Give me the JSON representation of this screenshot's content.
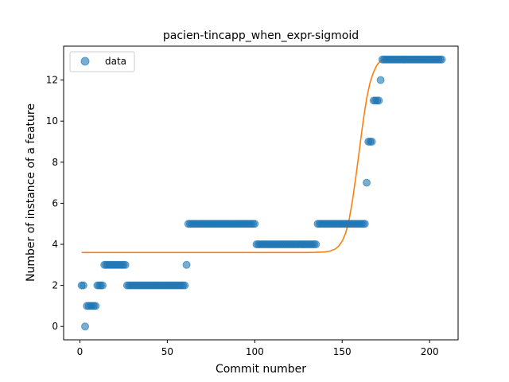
{
  "chart_data": {
    "type": "scatter",
    "title": "pacien-tincapp_when_expr-sigmoid",
    "xlabel": "Commit number",
    "ylabel": "Number of instance of a feature",
    "xlim": [
      -9.3,
      216.3
    ],
    "ylim": [
      -0.65,
      13.65
    ],
    "xticks": [
      0,
      50,
      100,
      150,
      200
    ],
    "yticks": [
      0,
      2,
      4,
      6,
      8,
      10,
      12
    ],
    "grid": false,
    "legend": {
      "position": "top-left",
      "entries": [
        {
          "label": "data",
          "marker": "circle",
          "color": "#1f77b4"
        }
      ]
    },
    "series": [
      {
        "name": "data",
        "kind": "scatter",
        "color": "#1f77b4",
        "opacity": 0.6,
        "points": [
          [
            1,
            2
          ],
          [
            2,
            2
          ],
          [
            3,
            0
          ],
          [
            4,
            1
          ],
          [
            5,
            1
          ],
          [
            6,
            1
          ],
          [
            7,
            1
          ],
          [
            8,
            1
          ],
          [
            9,
            1
          ],
          [
            10,
            2
          ],
          [
            11,
            2
          ],
          [
            12,
            2
          ],
          [
            13,
            2
          ],
          [
            14,
            3
          ],
          [
            15,
            3
          ],
          [
            16,
            3
          ],
          [
            17,
            3
          ],
          [
            18,
            3
          ],
          [
            19,
            3
          ],
          [
            20,
            3
          ],
          [
            21,
            3
          ],
          [
            22,
            3
          ],
          [
            23,
            3
          ],
          [
            24,
            3
          ],
          [
            25,
            3
          ],
          [
            26,
            3
          ],
          [
            27,
            2
          ],
          [
            28,
            2
          ],
          [
            29,
            2
          ],
          [
            30,
            2
          ],
          [
            31,
            2
          ],
          [
            32,
            2
          ],
          [
            33,
            2
          ],
          [
            34,
            2
          ],
          [
            35,
            2
          ],
          [
            36,
            2
          ],
          [
            37,
            2
          ],
          [
            38,
            2
          ],
          [
            39,
            2
          ],
          [
            40,
            2
          ],
          [
            41,
            2
          ],
          [
            42,
            2
          ],
          [
            43,
            2
          ],
          [
            44,
            2
          ],
          [
            45,
            2
          ],
          [
            46,
            2
          ],
          [
            47,
            2
          ],
          [
            48,
            2
          ],
          [
            49,
            2
          ],
          [
            50,
            2
          ],
          [
            51,
            2
          ],
          [
            52,
            2
          ],
          [
            53,
            2
          ],
          [
            54,
            2
          ],
          [
            55,
            2
          ],
          [
            56,
            2
          ],
          [
            57,
            2
          ],
          [
            58,
            2
          ],
          [
            59,
            2
          ],
          [
            60,
            2
          ],
          [
            61,
            3
          ],
          [
            62,
            5
          ],
          [
            63,
            5
          ],
          [
            64,
            5
          ],
          [
            65,
            5
          ],
          [
            66,
            5
          ],
          [
            67,
            5
          ],
          [
            68,
            5
          ],
          [
            69,
            5
          ],
          [
            70,
            5
          ],
          [
            71,
            5
          ],
          [
            72,
            5
          ],
          [
            73,
            5
          ],
          [
            74,
            5
          ],
          [
            75,
            5
          ],
          [
            76,
            5
          ],
          [
            77,
            5
          ],
          [
            78,
            5
          ],
          [
            79,
            5
          ],
          [
            80,
            5
          ],
          [
            81,
            5
          ],
          [
            82,
            5
          ],
          [
            83,
            5
          ],
          [
            84,
            5
          ],
          [
            85,
            5
          ],
          [
            86,
            5
          ],
          [
            87,
            5
          ],
          [
            88,
            5
          ],
          [
            89,
            5
          ],
          [
            90,
            5
          ],
          [
            91,
            5
          ],
          [
            92,
            5
          ],
          [
            93,
            5
          ],
          [
            94,
            5
          ],
          [
            95,
            5
          ],
          [
            96,
            5
          ],
          [
            97,
            5
          ],
          [
            98,
            5
          ],
          [
            99,
            5
          ],
          [
            100,
            5
          ],
          [
            101,
            4
          ],
          [
            102,
            4
          ],
          [
            103,
            4
          ],
          [
            104,
            4
          ],
          [
            105,
            4
          ],
          [
            106,
            4
          ],
          [
            107,
            4
          ],
          [
            108,
            4
          ],
          [
            109,
            4
          ],
          [
            110,
            4
          ],
          [
            111,
            4
          ],
          [
            112,
            4
          ],
          [
            113,
            4
          ],
          [
            114,
            4
          ],
          [
            115,
            4
          ],
          [
            116,
            4
          ],
          [
            117,
            4
          ],
          [
            118,
            4
          ],
          [
            119,
            4
          ],
          [
            120,
            4
          ],
          [
            121,
            4
          ],
          [
            122,
            4
          ],
          [
            123,
            4
          ],
          [
            124,
            4
          ],
          [
            125,
            4
          ],
          [
            126,
            4
          ],
          [
            127,
            4
          ],
          [
            128,
            4
          ],
          [
            129,
            4
          ],
          [
            130,
            4
          ],
          [
            131,
            4
          ],
          [
            132,
            4
          ],
          [
            133,
            4
          ],
          [
            134,
            4
          ],
          [
            135,
            4
          ],
          [
            136,
            5
          ],
          [
            137,
            5
          ],
          [
            138,
            5
          ],
          [
            139,
            5
          ],
          [
            140,
            5
          ],
          [
            141,
            5
          ],
          [
            142,
            5
          ],
          [
            143,
            5
          ],
          [
            144,
            5
          ],
          [
            145,
            5
          ],
          [
            146,
            5
          ],
          [
            147,
            5
          ],
          [
            148,
            5
          ],
          [
            149,
            5
          ],
          [
            150,
            5
          ],
          [
            151,
            5
          ],
          [
            152,
            5
          ],
          [
            153,
            5
          ],
          [
            154,
            5
          ],
          [
            155,
            5
          ],
          [
            156,
            5
          ],
          [
            157,
            5
          ],
          [
            158,
            5
          ],
          [
            159,
            5
          ],
          [
            160,
            5
          ],
          [
            161,
            5
          ],
          [
            162,
            5
          ],
          [
            163,
            5
          ],
          [
            164,
            7
          ],
          [
            165,
            9
          ],
          [
            166,
            9
          ],
          [
            167,
            9
          ],
          [
            168,
            11
          ],
          [
            169,
            11
          ],
          [
            170,
            11
          ],
          [
            171,
            11
          ],
          [
            172,
            12
          ],
          [
            173,
            13
          ],
          [
            174,
            13
          ],
          [
            175,
            13
          ],
          [
            176,
            13
          ],
          [
            177,
            13
          ],
          [
            178,
            13
          ],
          [
            179,
            13
          ],
          [
            180,
            13
          ],
          [
            181,
            13
          ],
          [
            182,
            13
          ],
          [
            183,
            13
          ],
          [
            184,
            13
          ],
          [
            185,
            13
          ],
          [
            186,
            13
          ],
          [
            187,
            13
          ],
          [
            188,
            13
          ],
          [
            189,
            13
          ],
          [
            190,
            13
          ],
          [
            191,
            13
          ],
          [
            192,
            13
          ],
          [
            193,
            13
          ],
          [
            194,
            13
          ],
          [
            195,
            13
          ],
          [
            196,
            13
          ],
          [
            197,
            13
          ],
          [
            198,
            13
          ],
          [
            199,
            13
          ],
          [
            200,
            13
          ],
          [
            201,
            13
          ],
          [
            202,
            13
          ],
          [
            203,
            13
          ],
          [
            204,
            13
          ],
          [
            205,
            13
          ],
          [
            206,
            13
          ],
          [
            207,
            13
          ]
        ]
      },
      {
        "kind": "line",
        "color": "#ff7f0e",
        "points": [
          [
            1,
            3.6
          ],
          [
            20,
            3.6
          ],
          [
            40,
            3.6
          ],
          [
            60,
            3.6
          ],
          [
            80,
            3.6
          ],
          [
            100,
            3.6
          ],
          [
            120,
            3.6
          ],
          [
            130,
            3.6
          ],
          [
            135,
            3.61
          ],
          [
            140,
            3.63
          ],
          [
            143,
            3.67
          ],
          [
            146,
            3.77
          ],
          [
            148,
            3.91
          ],
          [
            150,
            4.15
          ],
          [
            152,
            4.55
          ],
          [
            154,
            5.2
          ],
          [
            156,
            6.2
          ],
          [
            158,
            7.4
          ],
          [
            160,
            8.7
          ],
          [
            162,
            10.0
          ],
          [
            164,
            11.1
          ],
          [
            166,
            11.9
          ],
          [
            168,
            12.4
          ],
          [
            170,
            12.75
          ],
          [
            172,
            12.93
          ],
          [
            174,
            13.02
          ],
          [
            177,
            13.07
          ],
          [
            180,
            13.09
          ],
          [
            190,
            13.1
          ],
          [
            207,
            13.1
          ]
        ]
      }
    ]
  }
}
